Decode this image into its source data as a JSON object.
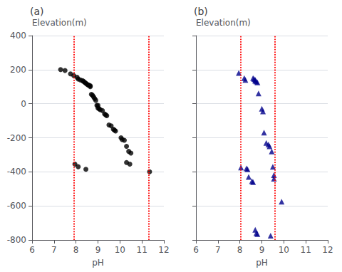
{
  "chart_data": [
    {
      "type": "scatter",
      "title": "(a)",
      "xlabel": "pH",
      "ylabel": "Elevation(m)",
      "xlim": [
        6,
        12
      ],
      "ylim": [
        -800,
        400
      ],
      "xticks": [
        6,
        7,
        8,
        9,
        10,
        11,
        12
      ],
      "yticks": [
        -800,
        -600,
        -400,
        -200,
        0,
        200,
        400
      ],
      "grid": true,
      "marker": "circle",
      "color": "black",
      "x": [
        7.3,
        7.5,
        7.75,
        7.9,
        8.05,
        8.1,
        8.2,
        8.3,
        8.35,
        8.4,
        8.45,
        8.5,
        8.55,
        8.6,
        8.65,
        8.65,
        8.7,
        8.75,
        8.8,
        8.85,
        8.9,
        8.95,
        9.0,
        9.0,
        9.05,
        9.1,
        9.2,
        9.3,
        9.35,
        9.4,
        9.5,
        9.6,
        9.7,
        9.75,
        9.8,
        10.05,
        10.1,
        10.2,
        10.3,
        10.4,
        10.5,
        10.3,
        10.45,
        7.95,
        8.1,
        8.45,
        11.35
      ],
      "values": [
        200,
        195,
        175,
        165,
        155,
        145,
        140,
        135,
        130,
        125,
        120,
        115,
        110,
        108,
        105,
        100,
        55,
        50,
        40,
        30,
        20,
        -10,
        -10,
        -25,
        -30,
        -35,
        -40,
        -60,
        -65,
        -70,
        -125,
        -130,
        -150,
        -155,
        -160,
        -200,
        -210,
        -215,
        -250,
        -280,
        -290,
        -345,
        -355,
        -355,
        -370,
        -385,
        -400
      ],
      "vlines": {
        "values": [
          7.9,
          11.3
        ],
        "color": "red",
        "line_style": "dotted"
      }
    },
    {
      "type": "scatter",
      "title": "(b)",
      "xlabel": "pH",
      "ylabel": "Elevation(m)",
      "xlim": [
        6,
        12
      ],
      "ylim": [
        -800,
        400
      ],
      "xticks": [
        6,
        7,
        8,
        9,
        10,
        11,
        12
      ],
      "yticks": [
        -800,
        -600,
        -400,
        -200,
        0,
        200,
        400
      ],
      "grid": true,
      "tick_labels": "x",
      "marker": "triangle",
      "color": "#00008B",
      "x": [
        7.95,
        8.2,
        8.25,
        8.6,
        8.65,
        8.7,
        8.7,
        8.75,
        8.8,
        8.85,
        9.0,
        9.05,
        9.1,
        9.2,
        9.3,
        9.35,
        9.45,
        9.5,
        9.55,
        9.55,
        9.9,
        8.05,
        8.3,
        8.35,
        8.4,
        8.55,
        8.6,
        8.7,
        8.75,
        8.8,
        9.4
      ],
      "values": [
        180,
        150,
        140,
        150,
        145,
        140,
        135,
        130,
        125,
        60,
        -30,
        -45,
        -170,
        -230,
        -240,
        -250,
        -280,
        -370,
        -420,
        -440,
        -575,
        -375,
        -380,
        -385,
        -430,
        -455,
        -460,
        -740,
        -760,
        -765,
        -775
      ],
      "vlines": {
        "values": [
          8.05,
          9.6
        ],
        "color": "red",
        "line_style": "dotted"
      }
    }
  ]
}
